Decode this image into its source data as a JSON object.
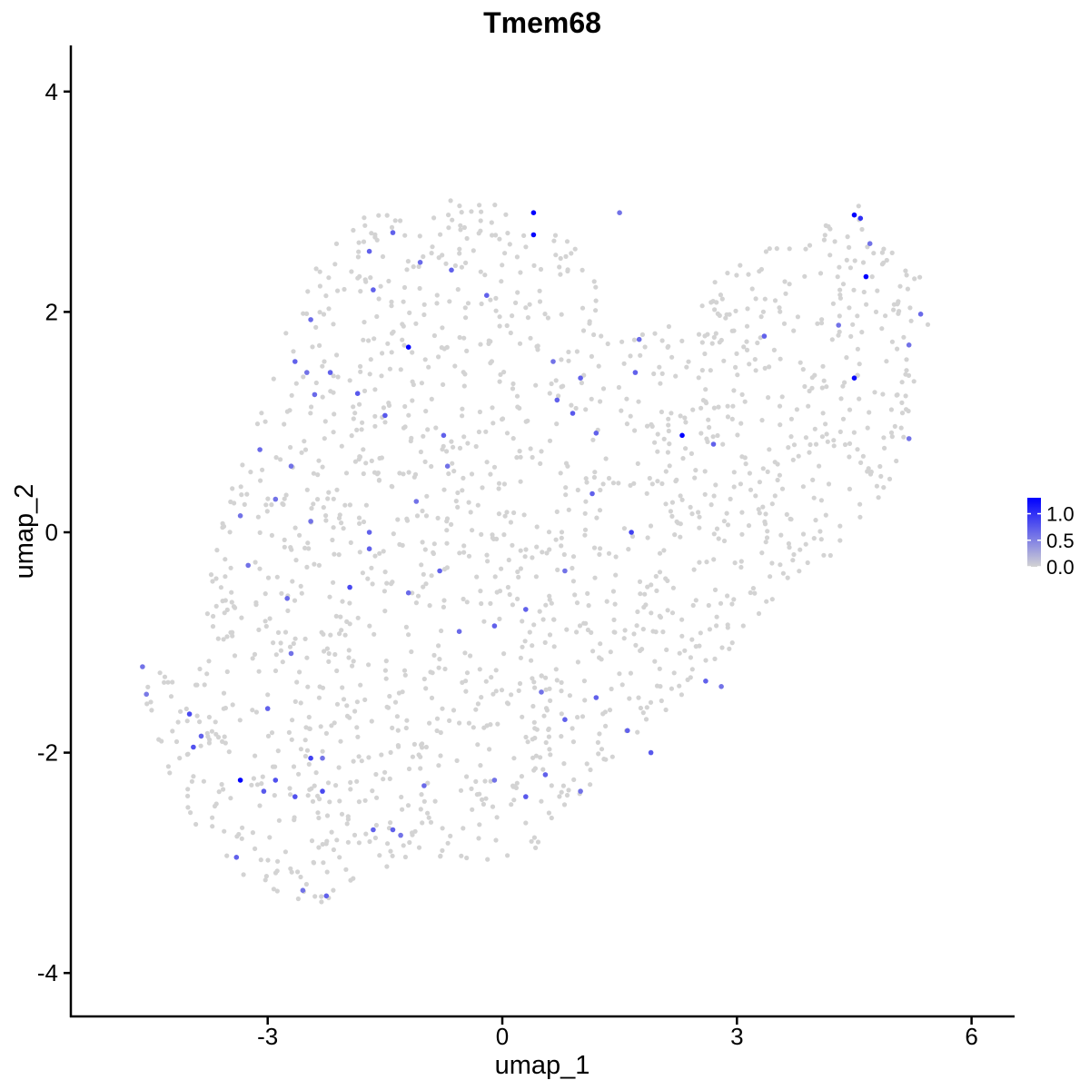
{
  "chart_data": {
    "type": "scatter",
    "title": "Tmem68",
    "xlabel": "umap_1",
    "ylabel": "umap_2",
    "xlim": [
      -5.8,
      6.6
    ],
    "ylim": [
      -4.4,
      4.4
    ],
    "x_ticks": [
      -3,
      0,
      3,
      6
    ],
    "y_ticks": [
      -4,
      -2,
      0,
      2,
      4
    ],
    "x_tick_labels": [
      "-3",
      "0",
      "3",
      "6"
    ],
    "y_tick_labels": [
      "-4",
      "-2",
      "0",
      "2",
      "4"
    ],
    "grid": false,
    "legend": {
      "type": "colorbar",
      "placement": "right",
      "min": 0.0,
      "max": 1.3,
      "ticks": [
        0.0,
        0.5,
        1.0
      ],
      "tick_labels": [
        "0.0",
        "0.5",
        "1.0"
      ],
      "low_color": "#D3D3D3",
      "high_color": "#0000FF"
    },
    "low_color": "#D3D3D3",
    "high_color": "#0000FF",
    "expressing_points": [
      {
        "x": -4.6,
        "y": -1.22,
        "v": 0.6
      },
      {
        "x": -4.55,
        "y": -1.47,
        "v": 0.55
      },
      {
        "x": -4.0,
        "y": -1.65,
        "v": 0.85
      },
      {
        "x": -3.95,
        "y": -1.95,
        "v": 0.8
      },
      {
        "x": -3.85,
        "y": -1.85,
        "v": 0.7
      },
      {
        "x": -3.35,
        "y": -2.25,
        "v": 1.3
      },
      {
        "x": -3.4,
        "y": -2.95,
        "v": 0.7
      },
      {
        "x": -3.05,
        "y": -2.35,
        "v": 0.75
      },
      {
        "x": -2.9,
        "y": -2.25,
        "v": 0.8
      },
      {
        "x": -2.65,
        "y": -2.4,
        "v": 0.8
      },
      {
        "x": -2.55,
        "y": -3.25,
        "v": 0.6
      },
      {
        "x": -2.45,
        "y": -2.05,
        "v": 0.9
      },
      {
        "x": -2.3,
        "y": -2.05,
        "v": 0.6
      },
      {
        "x": -2.25,
        "y": -3.3,
        "v": 0.7
      },
      {
        "x": -2.3,
        "y": -2.35,
        "v": 0.85
      },
      {
        "x": -1.65,
        "y": -2.7,
        "v": 0.7
      },
      {
        "x": -1.3,
        "y": -2.75,
        "v": 0.6
      },
      {
        "x": -3.0,
        "y": -1.6,
        "v": 0.7
      },
      {
        "x": -2.75,
        "y": -0.6,
        "v": 0.65
      },
      {
        "x": -2.7,
        "y": -1.1,
        "v": 0.6
      },
      {
        "x": -3.25,
        "y": -0.3,
        "v": 0.6
      },
      {
        "x": -3.35,
        "y": 0.15,
        "v": 0.6
      },
      {
        "x": -3.1,
        "y": 0.75,
        "v": 0.65
      },
      {
        "x": -2.9,
        "y": 0.3,
        "v": 0.6
      },
      {
        "x": -2.7,
        "y": 0.6,
        "v": 0.6
      },
      {
        "x": -2.45,
        "y": 0.1,
        "v": 0.6
      },
      {
        "x": -2.4,
        "y": 1.25,
        "v": 0.65
      },
      {
        "x": -2.5,
        "y": 1.45,
        "v": 0.6
      },
      {
        "x": -2.65,
        "y": 1.55,
        "v": 0.7
      },
      {
        "x": -2.45,
        "y": 1.93,
        "v": 0.65
      },
      {
        "x": -2.2,
        "y": 1.45,
        "v": 0.7
      },
      {
        "x": -1.85,
        "y": 1.26,
        "v": 0.75
      },
      {
        "x": -1.65,
        "y": 2.2,
        "v": 0.7
      },
      {
        "x": -1.7,
        "y": 2.55,
        "v": 0.7
      },
      {
        "x": -1.4,
        "y": 2.72,
        "v": 0.7
      },
      {
        "x": -1.2,
        "y": 1.68,
        "v": 1.3
      },
      {
        "x": -1.05,
        "y": 2.45,
        "v": 0.65
      },
      {
        "x": -0.65,
        "y": 2.38,
        "v": 0.7
      },
      {
        "x": -0.2,
        "y": 2.15,
        "v": 0.7
      },
      {
        "x": 0.4,
        "y": 2.9,
        "v": 1.3
      },
      {
        "x": 0.4,
        "y": 2.7,
        "v": 1.25
      },
      {
        "x": 1.5,
        "y": 2.9,
        "v": 0.6
      },
      {
        "x": -1.5,
        "y": 1.06,
        "v": 0.75
      },
      {
        "x": -0.75,
        "y": 0.88,
        "v": 0.7
      },
      {
        "x": -0.7,
        "y": 0.6,
        "v": 0.6
      },
      {
        "x": -1.1,
        "y": 0.28,
        "v": 0.6
      },
      {
        "x": -1.7,
        "y": 0.0,
        "v": 0.7
      },
      {
        "x": -1.95,
        "y": -0.5,
        "v": 0.85
      },
      {
        "x": -1.7,
        "y": -0.15,
        "v": 0.7
      },
      {
        "x": -1.2,
        "y": -0.55,
        "v": 0.65
      },
      {
        "x": -0.8,
        "y": -0.35,
        "v": 0.7
      },
      {
        "x": -0.55,
        "y": -0.9,
        "v": 0.65
      },
      {
        "x": -0.1,
        "y": -0.85,
        "v": 0.7
      },
      {
        "x": 0.3,
        "y": -0.7,
        "v": 0.7
      },
      {
        "x": 0.8,
        "y": -0.35,
        "v": 0.6
      },
      {
        "x": 0.9,
        "y": 1.08,
        "v": 0.75
      },
      {
        "x": 0.7,
        "y": 1.2,
        "v": 0.7
      },
      {
        "x": 0.65,
        "y": 1.55,
        "v": 0.6
      },
      {
        "x": 1.0,
        "y": 1.4,
        "v": 0.7
      },
      {
        "x": 1.2,
        "y": 0.9,
        "v": 0.7
      },
      {
        "x": 1.15,
        "y": 0.35,
        "v": 0.7
      },
      {
        "x": 1.65,
        "y": 0.0,
        "v": 0.9
      },
      {
        "x": 1.7,
        "y": 1.45,
        "v": 0.7
      },
      {
        "x": 1.75,
        "y": 1.75,
        "v": 0.65
      },
      {
        "x": 2.3,
        "y": 0.88,
        "v": 1.3
      },
      {
        "x": 2.7,
        "y": 0.8,
        "v": 0.7
      },
      {
        "x": 3.35,
        "y": 1.78,
        "v": 0.7
      },
      {
        "x": 4.5,
        "y": 2.88,
        "v": 1.3
      },
      {
        "x": 4.58,
        "y": 2.85,
        "v": 1.0
      },
      {
        "x": 4.65,
        "y": 2.32,
        "v": 1.3
      },
      {
        "x": 4.5,
        "y": 1.4,
        "v": 1.25
      },
      {
        "x": 4.7,
        "y": 2.62,
        "v": 0.6
      },
      {
        "x": 4.3,
        "y": 1.88,
        "v": 0.6
      },
      {
        "x": 5.2,
        "y": 1.7,
        "v": 0.6
      },
      {
        "x": 5.35,
        "y": 1.98,
        "v": 0.65
      },
      {
        "x": 5.2,
        "y": 0.85,
        "v": 0.6
      },
      {
        "x": 0.5,
        "y": -1.45,
        "v": 0.6
      },
      {
        "x": 0.8,
        "y": -1.7,
        "v": 0.7
      },
      {
        "x": 1.2,
        "y": -1.5,
        "v": 0.7
      },
      {
        "x": 1.6,
        "y": -1.8,
        "v": 0.7
      },
      {
        "x": 1.9,
        "y": -2.0,
        "v": 0.75
      },
      {
        "x": 2.6,
        "y": -1.35,
        "v": 0.7
      },
      {
        "x": 2.8,
        "y": -1.4,
        "v": 0.6
      },
      {
        "x": 0.3,
        "y": -2.4,
        "v": 0.75
      },
      {
        "x": 0.55,
        "y": -2.2,
        "v": 0.7
      },
      {
        "x": -0.1,
        "y": -2.25,
        "v": 0.6
      },
      {
        "x": -1.0,
        "y": -2.3,
        "v": 0.65
      },
      {
        "x": -1.4,
        "y": -2.7,
        "v": 0.7
      },
      {
        "x": 1.0,
        "y": -2.35,
        "v": 0.6
      }
    ]
  }
}
